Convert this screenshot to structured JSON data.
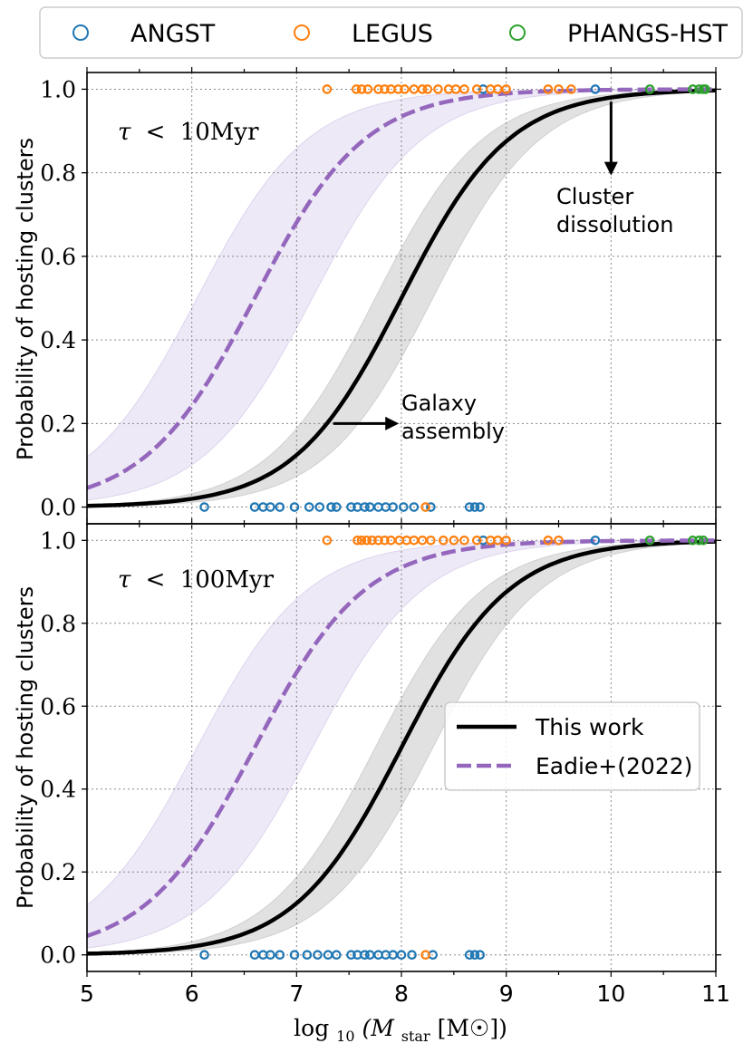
{
  "chart_data": {
    "type": "line",
    "legend_top": {
      "placement": "top",
      "entries": [
        {
          "label": "ANGST",
          "color": "#1f77b4",
          "marker": "open-circle"
        },
        {
          "label": "LEGUS",
          "color": "#ff7f0e",
          "marker": "open-circle"
        },
        {
          "label": "PHANGS-HST",
          "color": "#2ca02c",
          "marker": "open-circle"
        }
      ]
    },
    "xlabel": "log10(Mstar [M☉])",
    "xlabel_parts": {
      "pre": "log",
      "sub": "10",
      "mid": "(M",
      "msub": "star",
      "post": " [M☉])"
    },
    "xlim": [
      5,
      11
    ],
    "xticks": [
      5,
      6,
      7,
      8,
      9,
      10,
      11
    ],
    "ylim": [
      -0.04,
      1.04
    ],
    "yticks": [
      0.0,
      0.2,
      0.4,
      0.6,
      0.8,
      1.0
    ],
    "ylabel": "Probability of hosting clusters",
    "grid": true,
    "panels": [
      {
        "label": "τ < 10Myr",
        "label_parts": {
          "sym": "τ",
          "lt": "<",
          "val": "10Myr"
        },
        "series": [
          {
            "name": "This work",
            "color": "#000000",
            "style": "solid",
            "curve": {
              "type": "logistic",
              "x0": 8.0,
              "k": 1.95
            },
            "band": {
              "lower": {
                "x0": 8.3,
                "k": 1.95
              },
              "upper": {
                "x0": 7.75,
                "k": 1.95
              },
              "color": "#bdbdbd"
            }
          },
          {
            "name": "Eadie+(2022)",
            "color": "#9467bd",
            "style": "dashed",
            "curve": {
              "type": "logistic",
              "x0": 6.6,
              "k": 1.9
            },
            "band": {
              "lower": {
                "x0": 7.15,
                "k": 1.9
              },
              "upper": {
                "x0": 6.05,
                "k": 1.9
              },
              "color": "#cdbfe6"
            }
          }
        ],
        "points": {
          "hosting": {
            "ANGST": [
              8.78,
              9.85
            ],
            "LEGUS": [
              7.29,
              7.57,
              7.62,
              7.68,
              7.78,
              7.84,
              7.9,
              7.97,
              8.03,
              8.12,
              8.2,
              8.25,
              8.35,
              8.45,
              8.52,
              8.6,
              8.72,
              8.85,
              8.92,
              9.0,
              9.4,
              9.5,
              9.62
            ],
            "PHANGS-HST": [
              10.37,
              10.78,
              10.84,
              10.88,
              10.9
            ]
          },
          "non_hosting": {
            "ANGST": [
              6.12,
              6.6,
              6.68,
              6.75,
              6.84,
              6.98,
              7.12,
              7.22,
              7.33,
              7.38,
              7.52,
              7.58,
              7.65,
              7.7,
              7.78,
              7.85,
              7.92,
              8.02,
              8.12,
              8.28,
              8.65,
              8.7,
              8.75
            ],
            "LEGUS": [
              8.23
            ],
            "PHANGS-HST": []
          }
        },
        "annotations": [
          {
            "text_lines": [
              "Cluster",
              "dissolution"
            ],
            "arrow": "down",
            "arrow_x": 10.0,
            "arrow_from_y": 0.97,
            "arrow_to_y": 0.8
          },
          {
            "text_lines": [
              "Galaxy",
              "assembly"
            ],
            "arrow": "right",
            "arrow_y": 0.2,
            "arrow_from_x": 7.35,
            "arrow_to_x": 7.95
          }
        ]
      },
      {
        "label": "τ < 100Myr",
        "label_parts": {
          "sym": "τ",
          "lt": "<",
          "val": "100Myr"
        },
        "series": [
          {
            "name": "This work",
            "color": "#000000",
            "style": "solid",
            "curve": {
              "type": "logistic",
              "x0": 8.0,
              "k": 1.95
            },
            "band": {
              "lower": {
                "x0": 8.3,
                "k": 1.95
              },
              "upper": {
                "x0": 7.75,
                "k": 1.95
              },
              "color": "#bdbdbd"
            }
          },
          {
            "name": "Eadie+(2022)",
            "color": "#9467bd",
            "style": "dashed",
            "curve": {
              "type": "logistic",
              "x0": 6.6,
              "k": 1.9
            },
            "band": {
              "lower": {
                "x0": 7.15,
                "k": 1.9
              },
              "upper": {
                "x0": 6.05,
                "k": 1.9
              },
              "color": "#cdbfe6"
            }
          }
        ],
        "points": {
          "hosting": {
            "ANGST": [
              8.78,
              9.85
            ],
            "LEGUS": [
              7.29,
              7.58,
              7.62,
              7.67,
              7.72,
              7.78,
              7.84,
              7.9,
              7.98,
              8.05,
              8.12,
              8.2,
              8.28,
              8.4,
              8.5,
              8.6,
              8.72,
              8.85,
              8.92,
              9.0,
              9.4,
              9.5
            ],
            "PHANGS-HST": [
              10.37,
              10.78,
              10.84,
              10.88
            ]
          },
          "non_hosting": {
            "ANGST": [
              6.12,
              6.6,
              6.68,
              6.75,
              6.84,
              6.98,
              7.1,
              7.2,
              7.3,
              7.38,
              7.52,
              7.58,
              7.65,
              7.7,
              7.78,
              7.85,
              7.92,
              8.0,
              8.1,
              8.3,
              8.65,
              8.7,
              8.75
            ],
            "LEGUS": [
              8.23
            ],
            "PHANGS-HST": []
          }
        },
        "legend": {
          "placement": "center-right",
          "entries": [
            {
              "label": "This work",
              "color": "#000000",
              "style": "solid"
            },
            {
              "label": "Eadie+(2022)",
              "color": "#9467bd",
              "style": "dashed"
            }
          ]
        }
      }
    ]
  }
}
